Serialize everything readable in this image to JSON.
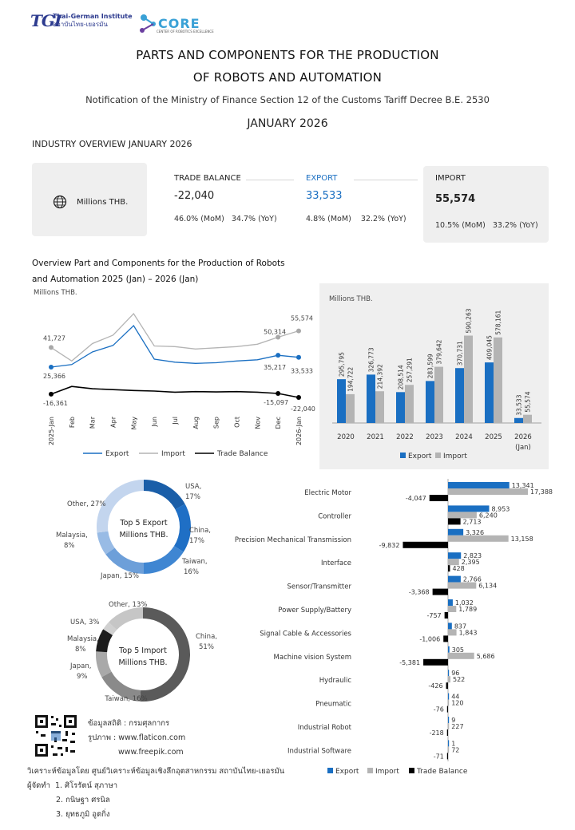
{
  "header": {
    "logo_tgi": "TGI",
    "logo_tgi_name_en": "Thai-German Institute",
    "logo_tgi_name_th": "สถาบันไทย-เยอรมัน",
    "logo_core": "CORE",
    "logo_core_sub": "CENTER OF ROBOTICS EXCELLENCE",
    "title_line1": "PARTS AND COMPONENTS FOR THE PRODUCTION",
    "title_line2": "OF ROBOTS AND AUTOMATION",
    "subtitle": "Notification of the Ministry of Finance Section 12 of the Customs Tariff Decree B.E. 2530",
    "month": "JANUARY 2026",
    "overview_label": "INDUSTRY OVERVIEW JANUARY 2026"
  },
  "summary": {
    "unit": "Millions THB.",
    "trade_balance": {
      "label": "TRADE BALANCE",
      "value": "-22,040",
      "mom": "46.0% (MoM)",
      "yoy": "34.7% (YoY)"
    },
    "export": {
      "label": "EXPORT",
      "value": "33,533",
      "mom": "4.8% (MoM)",
      "yoy": "32.2% (YoY)"
    },
    "import": {
      "label": "IMPORT",
      "value": "55,574",
      "mom": "10.5% (MoM)",
      "yoy": "33.2% (YoY)"
    }
  },
  "section_title_line1": "Overview Part and Components for the Production of Robots",
  "section_title_line2": "and Automation 2025 (Jan) – 2026 (Jan)",
  "colors": {
    "export": "#1a6fc2",
    "import": "#b4b4b4",
    "trade": "#000000",
    "card": "#efefef"
  },
  "chart_data": [
    {
      "type": "line",
      "unit": "Millions THB.",
      "categories": [
        "2025-Jan",
        "Feb",
        "Mar",
        "Apr",
        "May",
        "Jun",
        "Jul",
        "Aug",
        "Sep",
        "Oct",
        "Nov",
        "Dec",
        "2026-Jan"
      ],
      "series": [
        {
          "name": "Export",
          "values": [
            25366,
            27500,
            38000,
            43500,
            60000,
            32000,
            29500,
            28500,
            29000,
            30500,
            31500,
            35217,
            33533
          ]
        },
        {
          "name": "Import",
          "values": [
            41727,
            30500,
            45000,
            52000,
            70000,
            43000,
            42500,
            40500,
            41500,
            42500,
            44500,
            50314,
            55574
          ]
        },
        {
          "name": "Trade Balance",
          "values": [
            -16361,
            -3000,
            -7000,
            -8500,
            -10000,
            -11000,
            -13000,
            -12000,
            -12500,
            -12000,
            -13000,
            -15097,
            -22040
          ]
        }
      ],
      "data_labels": {
        "Export": {
          "first": "25,366",
          "dec": "35,217",
          "last": "33,533"
        },
        "Import": {
          "first": "41,727",
          "dec": "50,314",
          "last": "55,574"
        },
        "Trade Balance": {
          "first": "-16,361",
          "dec": "-15,097",
          "last": "-22,040"
        }
      },
      "legend": [
        "Export",
        "Import",
        "Trade Balance"
      ]
    },
    {
      "type": "bar",
      "unit": "Millions THB.",
      "categories": [
        "2020",
        "2021",
        "2022",
        "2023",
        "2024",
        "2025",
        "2026"
      ],
      "category_sublabels": [
        "",
        "",
        "",
        "",
        "",
        "",
        "(Jan)"
      ],
      "series": [
        {
          "name": "Export",
          "values": [
            295795,
            326773,
            208514,
            283599,
            370731,
            409045,
            33533
          ],
          "labels": [
            "295,795",
            "326,773",
            "208,514",
            "283,599",
            "370,731",
            "409,045",
            "33,533"
          ]
        },
        {
          "name": "Import",
          "values": [
            194722,
            214392,
            257291,
            379642,
            590263,
            578161,
            55574
          ],
          "labels": [
            "194,722",
            "214,392",
            "257,291",
            "379,642",
            "590,263",
            "578,161",
            "55,574"
          ]
        }
      ],
      "ylim": [
        0,
        620000
      ],
      "legend": [
        "Export",
        "Import"
      ]
    },
    {
      "type": "pie",
      "title_line1": "Top 5 Export",
      "title_line2": "Millions THB.",
      "slices": [
        {
          "label": "USA,",
          "pct_label": "17%",
          "value": 17,
          "color": "#1a5ea8"
        },
        {
          "label": "China,",
          "pct_label": "17%",
          "value": 17,
          "color": "#1f6fc5"
        },
        {
          "label": "Taiwan,",
          "pct_label": "16%",
          "value": 16,
          "color": "#3f86d2"
        },
        {
          "label": "Japan, 15%",
          "pct_label": "",
          "value": 15,
          "color": "#6d9fd9"
        },
        {
          "label": "Malaysia,",
          "pct_label": "8%",
          "value": 8,
          "color": "#98bbe5"
        },
        {
          "label": "Other, 27%",
          "pct_label": "",
          "value": 27,
          "color": "#c3d5ee"
        }
      ]
    },
    {
      "type": "pie",
      "title_line1": "Top 5 Import",
      "title_line2": "Millions THB.",
      "slices": [
        {
          "label": "China,",
          "pct_label": "51%",
          "value": 51,
          "color": "#5a5a5a"
        },
        {
          "label": "Taiwan, 16%",
          "pct_label": "",
          "value": 16,
          "color": "#8a8a8a"
        },
        {
          "label": "Japan,",
          "pct_label": "9%",
          "value": 9,
          "color": "#a9a9a9"
        },
        {
          "label": "Malaysia,",
          "pct_label": "8%",
          "value": 8,
          "color": "#1c1c1c"
        },
        {
          "label": "USA, 3%",
          "pct_label": "",
          "value": 3,
          "color": "#d0d0d0"
        },
        {
          "label": "Other, 13%",
          "pct_label": "",
          "value": 13,
          "color": "#c6c6c6"
        }
      ]
    },
    {
      "type": "bar",
      "orientation": "horizontal",
      "categories": [
        "Electric Motor",
        "Controller",
        "Precision Mechanical Transmission",
        "Interface",
        "Sensor/Transmitter",
        "Power Supply/Battery",
        "Signal Cable & Accessories",
        "Machine vision System",
        "Hydraulic",
        "Pneumatic",
        "Industrial Robot",
        "Industrial Software"
      ],
      "series": [
        {
          "name": "Export",
          "values": [
            13341,
            8953,
            3326,
            2823,
            2766,
            1032,
            837,
            305,
            96,
            44,
            9,
            1
          ],
          "labels": [
            "13,341",
            "8,953",
            "3,326",
            "2,823",
            "2,766",
            "1,032",
            "837",
            "305",
            "96",
            "44",
            "9",
            "1"
          ]
        },
        {
          "name": "Import",
          "values": [
            17388,
            6240,
            13158,
            2395,
            6134,
            1789,
            1843,
            5686,
            522,
            120,
            227,
            72
          ],
          "labels": [
            "17,388",
            "6,240",
            "13,158",
            "2,395",
            "6,134",
            "1,789",
            "1,843",
            "5,686",
            "522",
            "120",
            "227",
            "72"
          ]
        },
        {
          "name": "Trade Balance",
          "values": [
            -4047,
            2713,
            -9832,
            428,
            -3368,
            -757,
            -1006,
            -5381,
            -426,
            -76,
            -218,
            -71
          ],
          "labels": [
            "-4,047",
            "2,713",
            "-9,832",
            "428",
            "-3,368",
            "-757",
            "-1,006",
            "-5,381",
            "-426",
            "-76",
            "-218",
            "-71"
          ]
        }
      ],
      "legend": [
        "Export",
        "Import",
        "Trade Balance"
      ]
    }
  ],
  "credits": {
    "source": "ข้อมูลสถิติ : กรมศุลกากร",
    "images": "รูปภาพ : www.flaticon.com",
    "images2": "www.freepik.com",
    "analysis": "วิเคราะห์ข้อมูลโดย ศูนย์วิเคราะห์ข้อมูลเชิงลึกอุตสาหกรรม สถาบันไทย-เยอรมัน",
    "prepared_by": "ผู้จัดทำ",
    "authors": [
      "1. ศิโรรัตน์ สุภาษา",
      "2. กนิษฐา ศรนิล",
      "3. ยุทธภูมิ อูตกิ่ง"
    ]
  }
}
